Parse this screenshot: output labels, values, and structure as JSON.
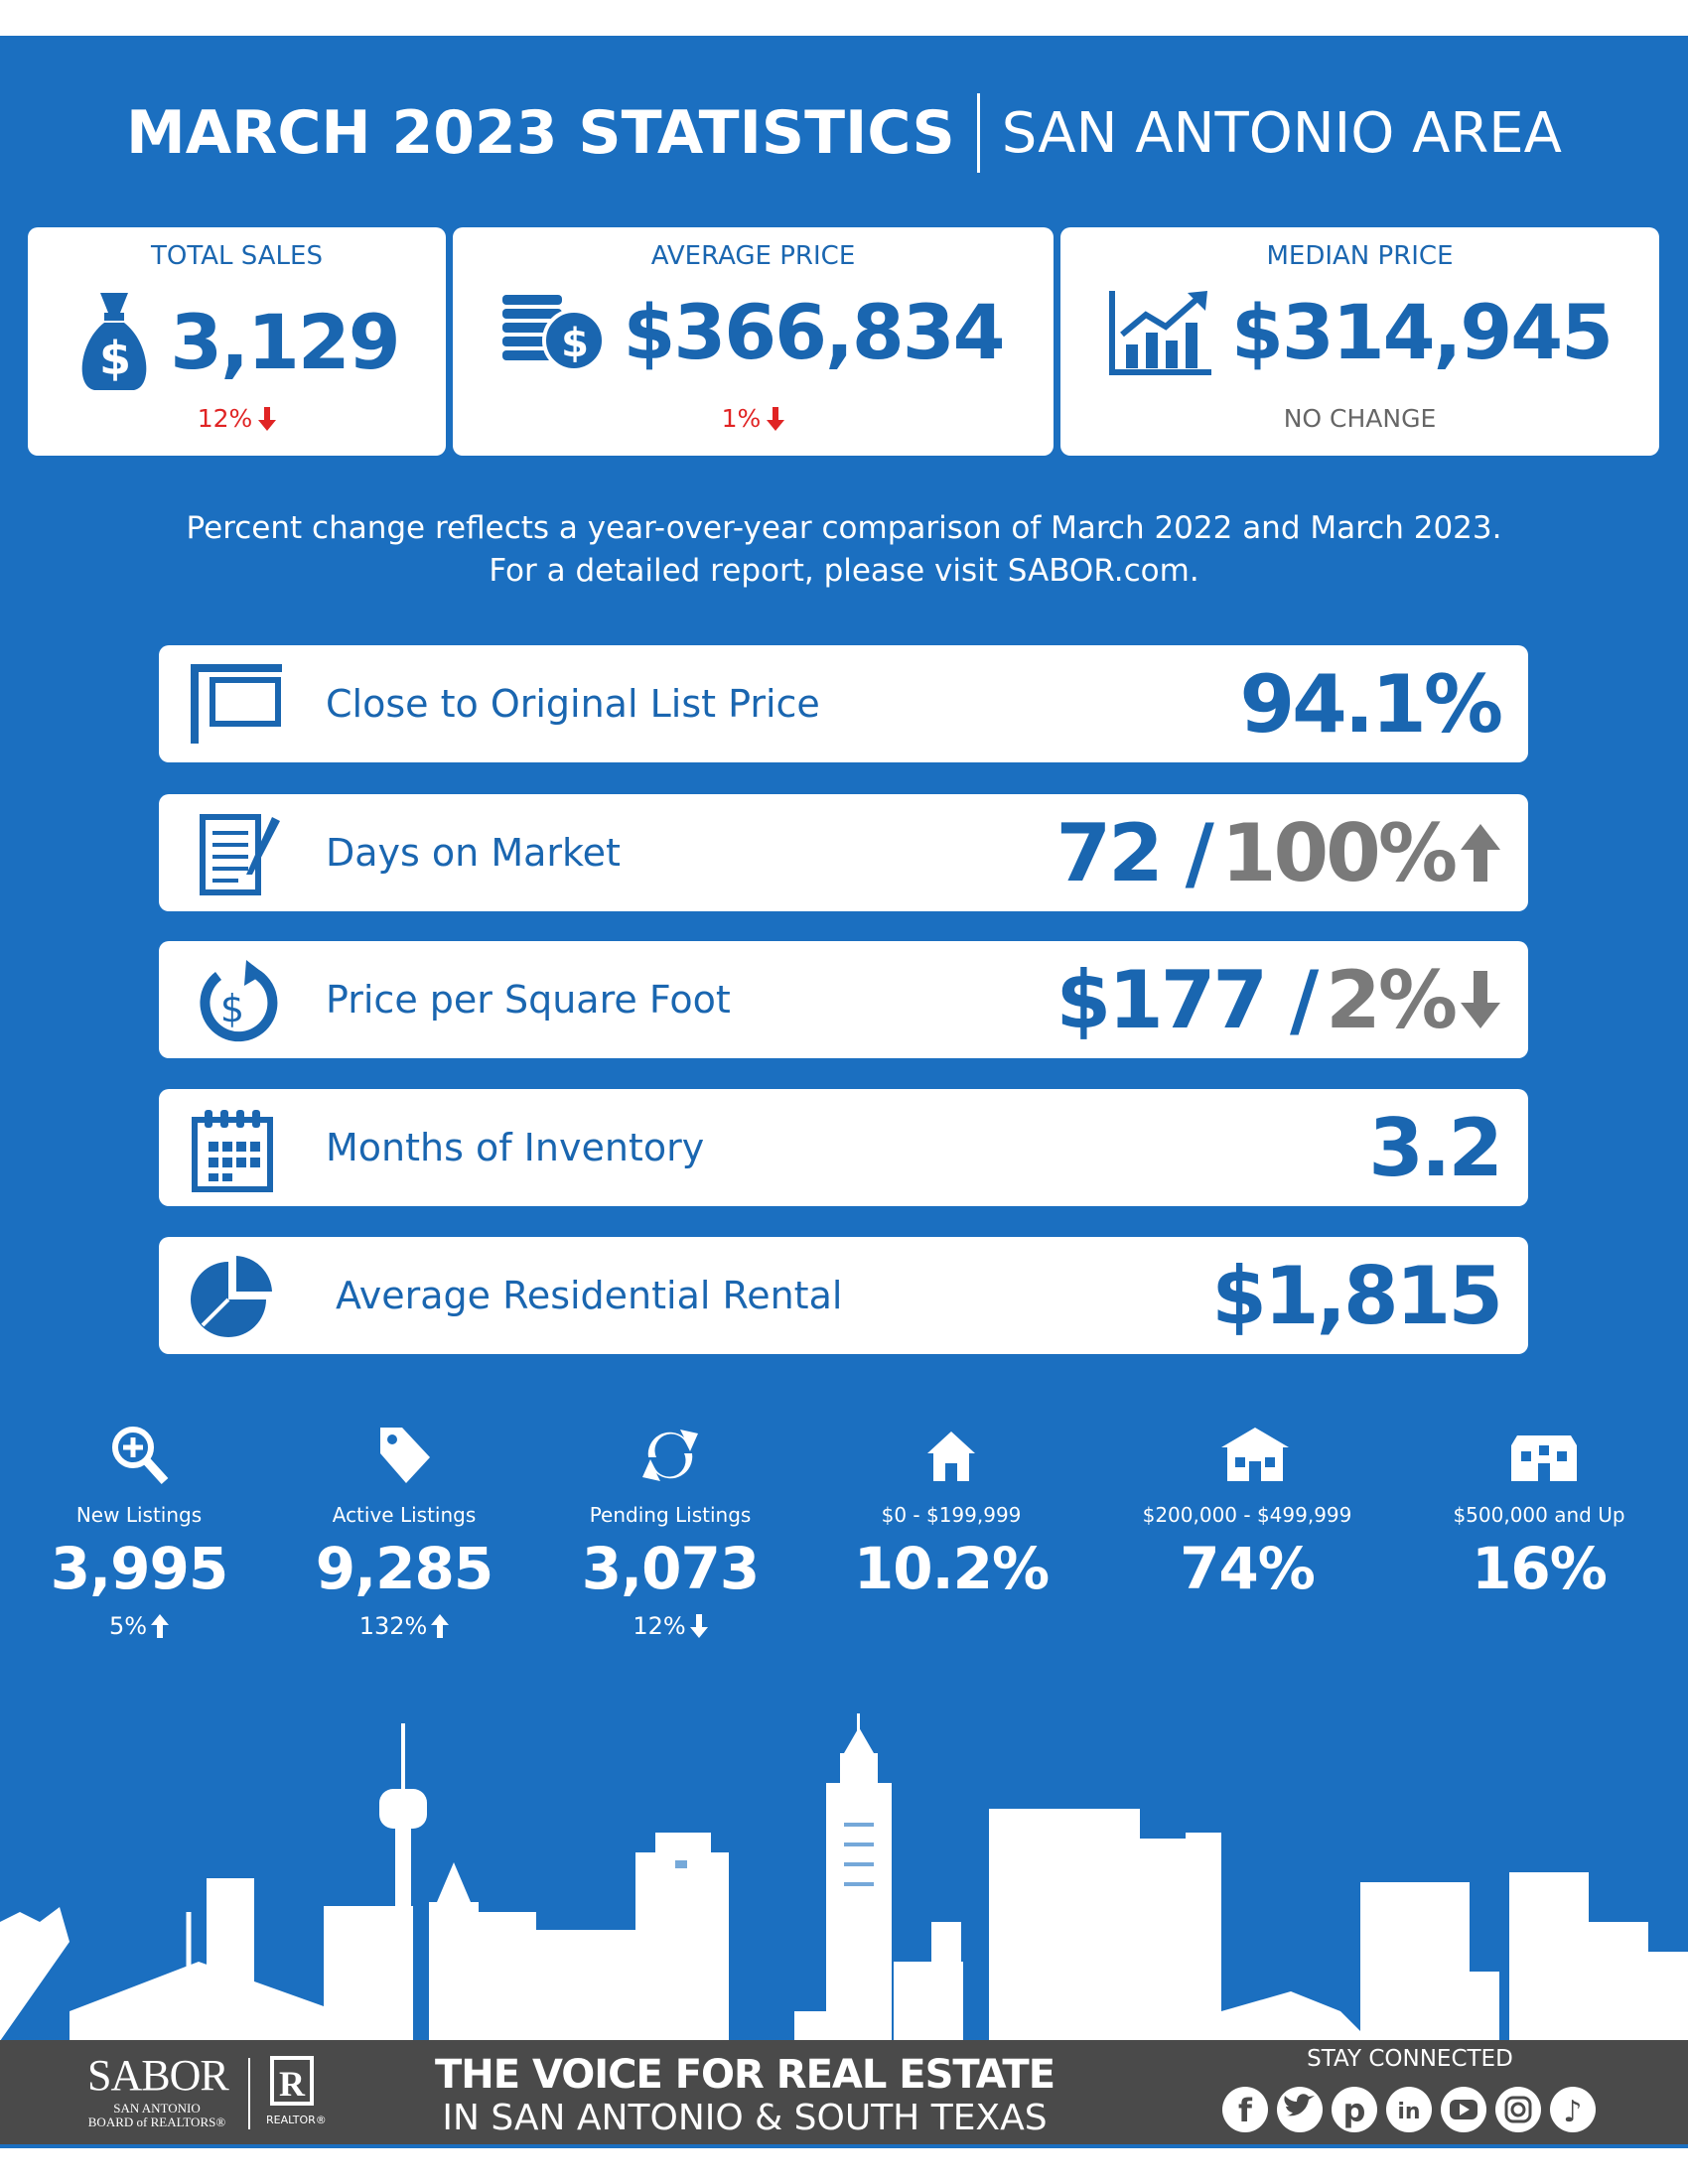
{
  "header": {
    "title": "MARCH 2023 STATISTICS",
    "subtitle": "SAN ANTONIO AREA"
  },
  "top_stats": [
    {
      "label": "TOTAL SALES",
      "value": "3,129",
      "change": "12%"
    },
    {
      "label": "AVERAGE PRICE",
      "value": "$366,834",
      "change": "1%"
    },
    {
      "label": "MEDIAN PRICE",
      "value": "$314,945",
      "change": "NO CHANGE"
    }
  ],
  "note": [
    "Percent change reflects a year-over-year comparison of March 2022 and March 2023.",
    "For a detailed report, please visit SABOR.com."
  ],
  "metrics": [
    {
      "label": "Close to Original List Price",
      "value": "94.1%"
    },
    {
      "label": "Days on Market",
      "value": "72 /",
      "change": "100%"
    },
    {
      "label": "Price per Square Foot",
      "value": "$177 /",
      "change": "2%"
    },
    {
      "label": "Months of Inventory",
      "value": "3.2"
    },
    {
      "label": "Average Residential Rental",
      "value": "$1,815"
    }
  ],
  "bottom_stats": [
    {
      "label": "New Listings",
      "value": "3,995",
      "change": "5%"
    },
    {
      "label": "Active Listings",
      "value": "9,285",
      "change": "132%"
    },
    {
      "label": "Pending Listings",
      "value": "3,073",
      "change": "12%"
    },
    {
      "label": "$0 - $199,999",
      "value": "10.2%"
    },
    {
      "label": "$200,000 - $499,999",
      "value": "74%"
    },
    {
      "label": "$500,000 and Up",
      "value": "16%"
    }
  ],
  "footer": {
    "logo": "SABOR",
    "logo_sub": [
      "SAN ANTONIO",
      "BOARD of REALTORS®"
    ],
    "realtor": "REALTOR®",
    "tagline": [
      "THE VOICE FOR REAL ESTATE",
      "IN SAN ANTONIO & SOUTH TEXAS"
    ],
    "social": "STAY CONNECTED"
  }
}
